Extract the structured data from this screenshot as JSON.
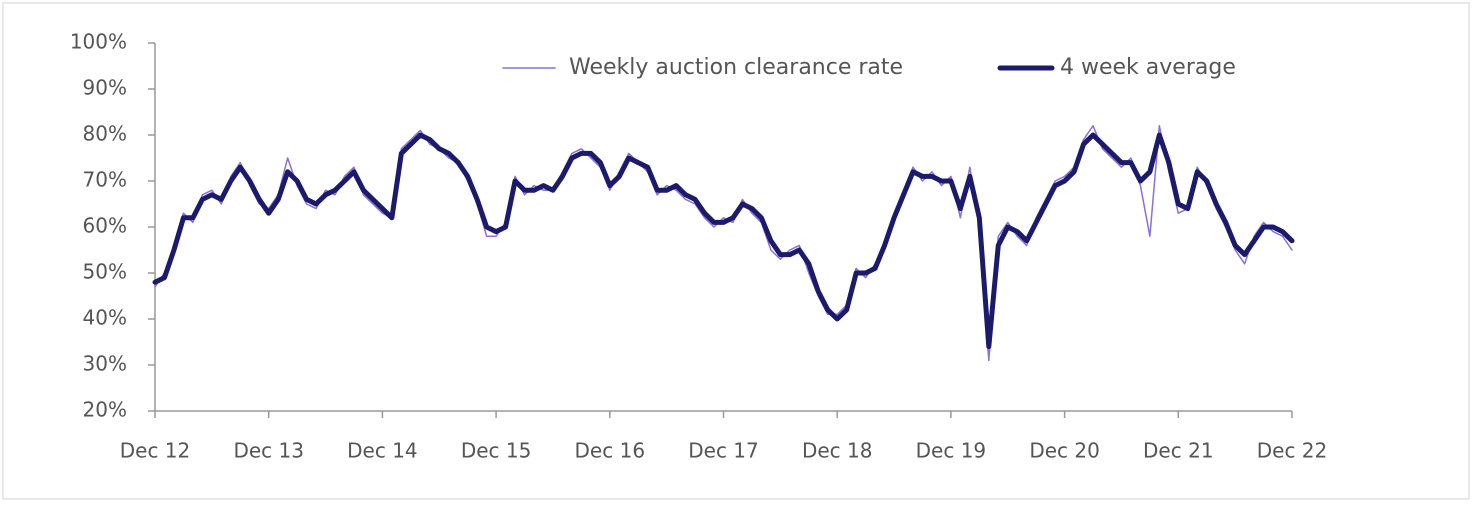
{
  "chart_data": {
    "type": "line",
    "categories": [
      "Dec 12",
      null,
      null,
      null,
      null,
      null,
      null,
      null,
      null,
      null,
      null,
      null,
      "Dec 13",
      null,
      null,
      null,
      null,
      null,
      null,
      null,
      null,
      null,
      null,
      null,
      "Dec 14",
      null,
      null,
      null,
      null,
      null,
      null,
      null,
      null,
      null,
      null,
      null,
      "Dec 15",
      null,
      null,
      null,
      null,
      null,
      null,
      null,
      null,
      null,
      null,
      null,
      "Dec 16",
      null,
      null,
      null,
      null,
      null,
      null,
      null,
      null,
      null,
      null,
      null,
      "Dec 17",
      null,
      null,
      null,
      null,
      null,
      null,
      null,
      null,
      null,
      null,
      null,
      "Dec 18",
      null,
      null,
      null,
      null,
      null,
      null,
      null,
      null,
      null,
      null,
      null,
      "Dec 19",
      null,
      null,
      null,
      null,
      null,
      null,
      null,
      null,
      null,
      null,
      null,
      "Dec 20",
      null,
      null,
      null,
      null,
      null,
      null,
      null,
      null,
      null,
      null,
      null,
      "Dec 21",
      null,
      null,
      null,
      null,
      null,
      null,
      null,
      null,
      null,
      null,
      null,
      "Dec 22"
    ],
    "series": [
      {
        "name": "Weekly auction clearance rate",
        "color": "#8a6fd8",
        "width": 1.5,
        "values": [
          47,
          50,
          56,
          63,
          61,
          67,
          68,
          65,
          71,
          74,
          69,
          65,
          64,
          67,
          75,
          69,
          65,
          64,
          68,
          67,
          71,
          73,
          67,
          65,
          63,
          62,
          77,
          79,
          81,
          78,
          77,
          75,
          74,
          70,
          65,
          58,
          58,
          61,
          71,
          67,
          69,
          68,
          68,
          72,
          76,
          77,
          75,
          73,
          68,
          72,
          76,
          74,
          72,
          67,
          69,
          68,
          66,
          65,
          62,
          60,
          62,
          61,
          66,
          63,
          61,
          55,
          53,
          55,
          56,
          50,
          45,
          41,
          41,
          43,
          51,
          49,
          52,
          55,
          63,
          68,
          73,
          70,
          72,
          69,
          71,
          62,
          73,
          60,
          31,
          58,
          61,
          58,
          56,
          62,
          66,
          70,
          71,
          73,
          79,
          82,
          77,
          75,
          73,
          75,
          69,
          58,
          82,
          72,
          63,
          64,
          73,
          69,
          64,
          60,
          55,
          52,
          58,
          61,
          59,
          58,
          55
        ]
      },
      {
        "name": "4 week average",
        "color": "#1c1a6b",
        "width": 5,
        "values": [
          48,
          49,
          55,
          62,
          62,
          66,
          67,
          66,
          70,
          73,
          70,
          66,
          63,
          66,
          72,
          70,
          66,
          65,
          67,
          68,
          70,
          72,
          68,
          66,
          64,
          62,
          76,
          78,
          80,
          79,
          77,
          76,
          74,
          71,
          66,
          60,
          59,
          60,
          70,
          68,
          68,
          69,
          68,
          71,
          75,
          76,
          76,
          74,
          69,
          71,
          75,
          74,
          73,
          68,
          68,
          69,
          67,
          66,
          63,
          61,
          61,
          62,
          65,
          64,
          62,
          57,
          54,
          54,
          55,
          52,
          46,
          42,
          40,
          42,
          50,
          50,
          51,
          56,
          62,
          67,
          72,
          71,
          71,
          70,
          70,
          64,
          71,
          62,
          34,
          56,
          60,
          59,
          57,
          61,
          65,
          69,
          70,
          72,
          78,
          80,
          78,
          76,
          74,
          74,
          70,
          72,
          80,
          74,
          65,
          64,
          72,
          70,
          65,
          61,
          56,
          54,
          57,
          60,
          60,
          59,
          57
        ]
      }
    ],
    "ylim": [
      20,
      100
    ],
    "yticks": [
      {
        "value": 20,
        "label": "20%"
      },
      {
        "value": 30,
        "label": "30%"
      },
      {
        "value": 40,
        "label": "40%"
      },
      {
        "value": 50,
        "label": "50%"
      },
      {
        "value": 60,
        "label": "60%"
      },
      {
        "value": 70,
        "label": "70%"
      },
      {
        "value": 80,
        "label": "80%"
      },
      {
        "value": 90,
        "label": "90%"
      },
      {
        "value": 100,
        "label": "100%"
      }
    ],
    "legend": "top-right"
  }
}
